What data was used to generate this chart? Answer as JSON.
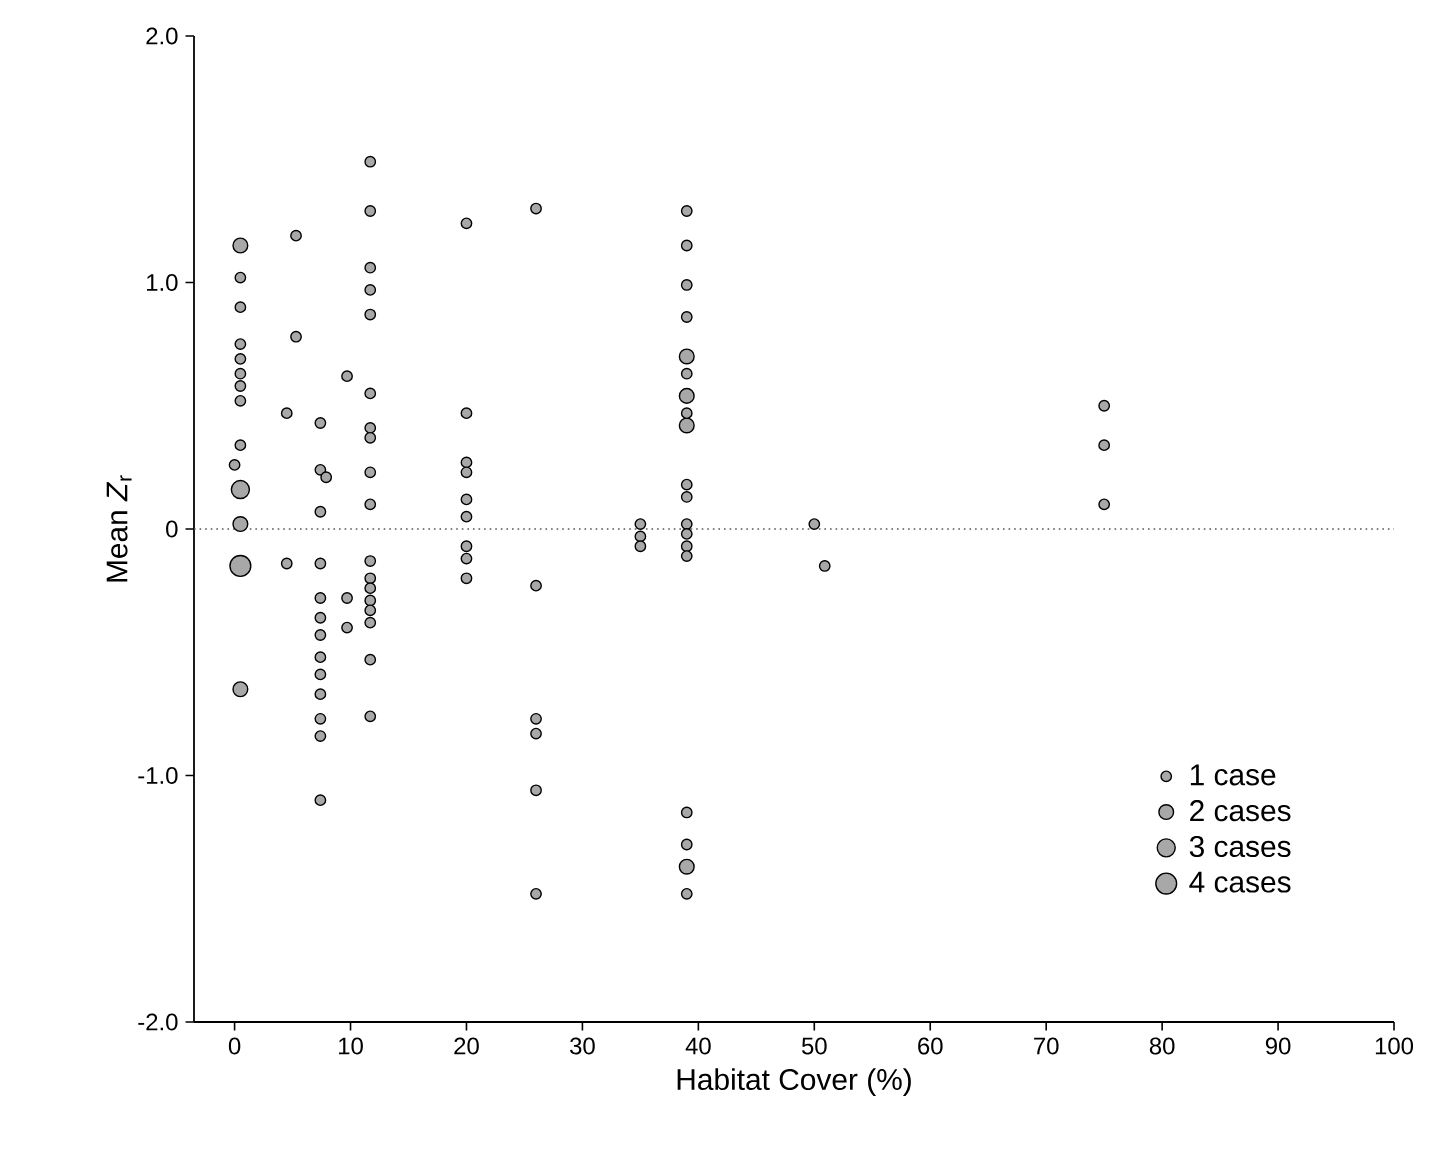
{
  "chart_data": {
    "type": "bubble",
    "xlabel": "Habitat Cover (%)",
    "ylabel": "Mean *Z*$_{r}$",
    "xlim": [
      -3.5,
      100
    ],
    "xticks": [
      0,
      10,
      20,
      30,
      40,
      50,
      60,
      70,
      80,
      90,
      100
    ],
    "ylim": [
      -2,
      2
    ],
    "yticks": [
      {
        "value": -2,
        "label": "-2.0"
      },
      {
        "value": -1,
        "label": "-1.0"
      },
      0,
      {
        "value": 1,
        "label": "1.0"
      },
      {
        "value": 2,
        "label": "2.0"
      }
    ],
    "size_legend": [
      {
        "value": 1,
        "label": "1 case"
      },
      {
        "value": 2,
        "label": "2 cases"
      },
      {
        "value": 3,
        "label": "3 cases"
      },
      {
        "value": 4,
        "label": "4 cases"
      }
    ],
    "ref_lines": [
      {
        "axis": "y",
        "value": 0,
        "line_style": "dotted",
        "color": "#555555"
      }
    ],
    "series": [
      {
        "color": "#a8a8a8",
        "x": [
          0.5,
          0.5,
          0.5,
          0.5,
          0.5,
          0.5,
          0.5,
          0.5,
          0.5,
          0,
          0.5,
          0.5,
          0.5,
          0.5,
          5.3,
          5.3,
          4.5,
          4.5,
          7.4,
          7.4,
          7.9,
          7.4,
          7.4,
          7.4,
          7.4,
          7.4,
          7.4,
          7.4,
          7.4,
          7.4,
          7.4,
          7.4,
          9.7,
          9.7,
          9.7,
          11.7,
          11.7,
          11.7,
          11.7,
          11.7,
          11.7,
          11.7,
          11.7,
          11.7,
          11.7,
          11.7,
          11.7,
          11.7,
          11.7,
          11.7,
          11.7,
          11.7,
          11.7,
          20,
          20,
          20,
          20,
          20,
          20,
          20,
          20,
          20,
          26,
          26,
          26,
          26,
          26,
          26,
          35,
          35,
          35,
          39,
          39,
          39,
          39,
          39,
          39,
          39,
          39,
          39,
          39,
          39,
          39,
          39,
          39,
          39,
          39,
          39,
          39,
          39,
          50,
          50.9,
          75,
          75,
          75
        ],
        "values": [
          1.15,
          1.02,
          0.9,
          0.75,
          0.69,
          0.63,
          0.58,
          0.52,
          0.34,
          0.26,
          0.16,
          0.02,
          -0.15,
          -0.65,
          1.19,
          0.78,
          0.47,
          -0.14,
          0.43,
          0.24,
          0.21,
          0.07,
          -0.14,
          -0.28,
          -0.36,
          -0.43,
          -0.52,
          -0.59,
          -0.67,
          -0.77,
          -0.84,
          -1.1,
          0.62,
          -0.28,
          -0.4,
          1.49,
          1.29,
          1.06,
          0.97,
          0.87,
          0.55,
          0.41,
          0.37,
          0.23,
          0.1,
          -0.13,
          -0.2,
          -0.24,
          -0.29,
          -0.33,
          -0.38,
          -0.53,
          -0.76,
          1.24,
          0.47,
          0.27,
          0.23,
          0.12,
          0.05,
          -0.07,
          -0.12,
          -0.2,
          1.3,
          -0.23,
          -0.77,
          -0.83,
          -1.06,
          -1.48,
          0.02,
          -0.03,
          -0.07,
          1.29,
          1.15,
          0.99,
          0.86,
          0.7,
          0.54,
          0.42,
          0.18,
          0.13,
          0.02,
          -0.02,
          -0.07,
          -0.11,
          -1.15,
          -1.28,
          -1.37,
          -1.48,
          0.47,
          0.63,
          0.02,
          -0.15,
          0.5,
          0.34,
          0.1
        ],
        "sizes": [
          2,
          1,
          1,
          1,
          1,
          1,
          1,
          1,
          1,
          1,
          3,
          2,
          4,
          2,
          1,
          1,
          1,
          1,
          1,
          1,
          1,
          1,
          1,
          1,
          1,
          1,
          1,
          1,
          1,
          1,
          1,
          1,
          1,
          1,
          1,
          1,
          1,
          1,
          1,
          1,
          1,
          1,
          1,
          1,
          1,
          1,
          1,
          1,
          1,
          1,
          1,
          1,
          1,
          1,
          1,
          1,
          1,
          1,
          1,
          1,
          1,
          1,
          1,
          1,
          1,
          1,
          1,
          1,
          1,
          1,
          1,
          1,
          1,
          1,
          1,
          2,
          2,
          2,
          1,
          1,
          1,
          1,
          1,
          1,
          1,
          1,
          2,
          1,
          1,
          1,
          1,
          1,
          1,
          1,
          1
        ]
      }
    ]
  }
}
